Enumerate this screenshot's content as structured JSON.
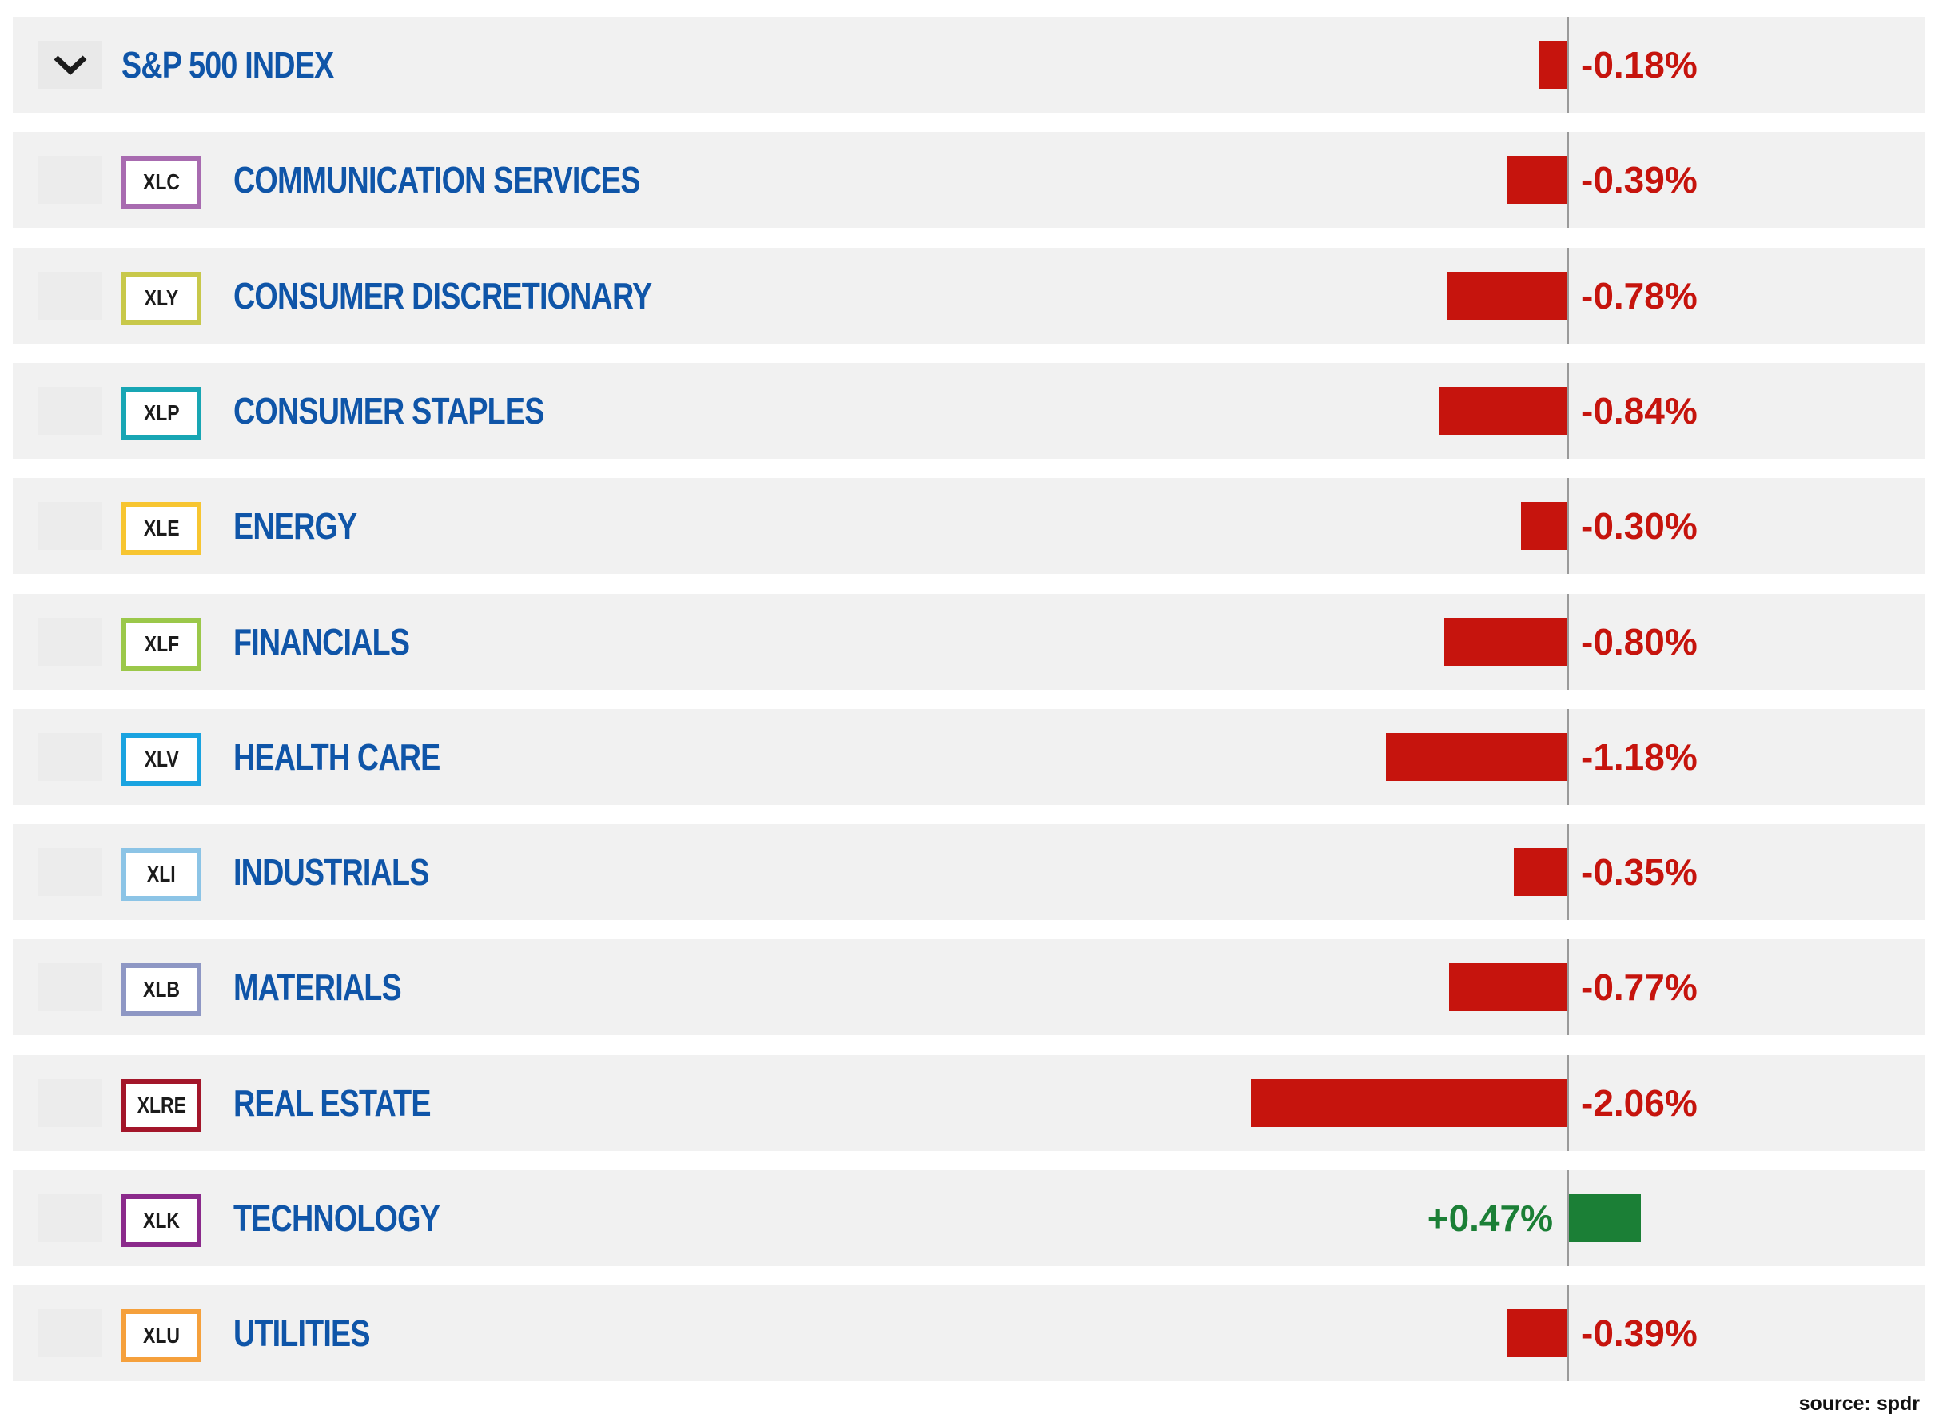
{
  "chart_data": {
    "type": "bar",
    "orientation": "horizontal",
    "unit": "%",
    "index": {
      "label": "S&P 500 INDEX",
      "value": -0.18,
      "display": "-0.18%"
    },
    "sectors": [
      {
        "ticker": "XLC",
        "label": "COMMUNICATION SERVICES",
        "value": -0.39,
        "display": "-0.39%",
        "ticker_color": "#a86bb0"
      },
      {
        "ticker": "XLY",
        "label": "CONSUMER DISCRETIONARY",
        "value": -0.78,
        "display": "-0.78%",
        "ticker_color": "#c8c84a"
      },
      {
        "ticker": "XLP",
        "label": "CONSUMER STAPLES",
        "value": -0.84,
        "display": "-0.84%",
        "ticker_color": "#18a6b4"
      },
      {
        "ticker": "XLE",
        "label": "ENERGY",
        "value": -0.3,
        "display": "-0.30%",
        "ticker_color": "#f7c531"
      },
      {
        "ticker": "XLF",
        "label": "FINANCIALS",
        "value": -0.8,
        "display": "-0.80%",
        "ticker_color": "#9bc84a"
      },
      {
        "ticker": "XLV",
        "label": "HEALTH CARE",
        "value": -1.18,
        "display": "-1.18%",
        "ticker_color": "#1aa3e0"
      },
      {
        "ticker": "XLI",
        "label": "INDUSTRIALS",
        "value": -0.35,
        "display": "-0.35%",
        "ticker_color": "#8cc4e6"
      },
      {
        "ticker": "XLB",
        "label": "MATERIALS",
        "value": -0.77,
        "display": "-0.77%",
        "ticker_color": "#8e97c4"
      },
      {
        "ticker": "XLRE",
        "label": "REAL ESTATE",
        "value": -2.06,
        "display": "-2.06%",
        "ticker_color": "#a3162a"
      },
      {
        "ticker": "XLK",
        "label": "TECHNOLOGY",
        "value": 0.47,
        "display": "+0.47%",
        "ticker_color": "#8b2a8b"
      },
      {
        "ticker": "XLU",
        "label": "UTILITIES",
        "value": -0.39,
        "display": "-0.39%",
        "ticker_color": "#f5a03c"
      }
    ],
    "colors": {
      "negative": "#c6140d",
      "positive": "#1b7f36",
      "label": "#0f55a8"
    }
  },
  "source": "source: spdr",
  "icons": {
    "toggle": "chevron-down-icon"
  }
}
